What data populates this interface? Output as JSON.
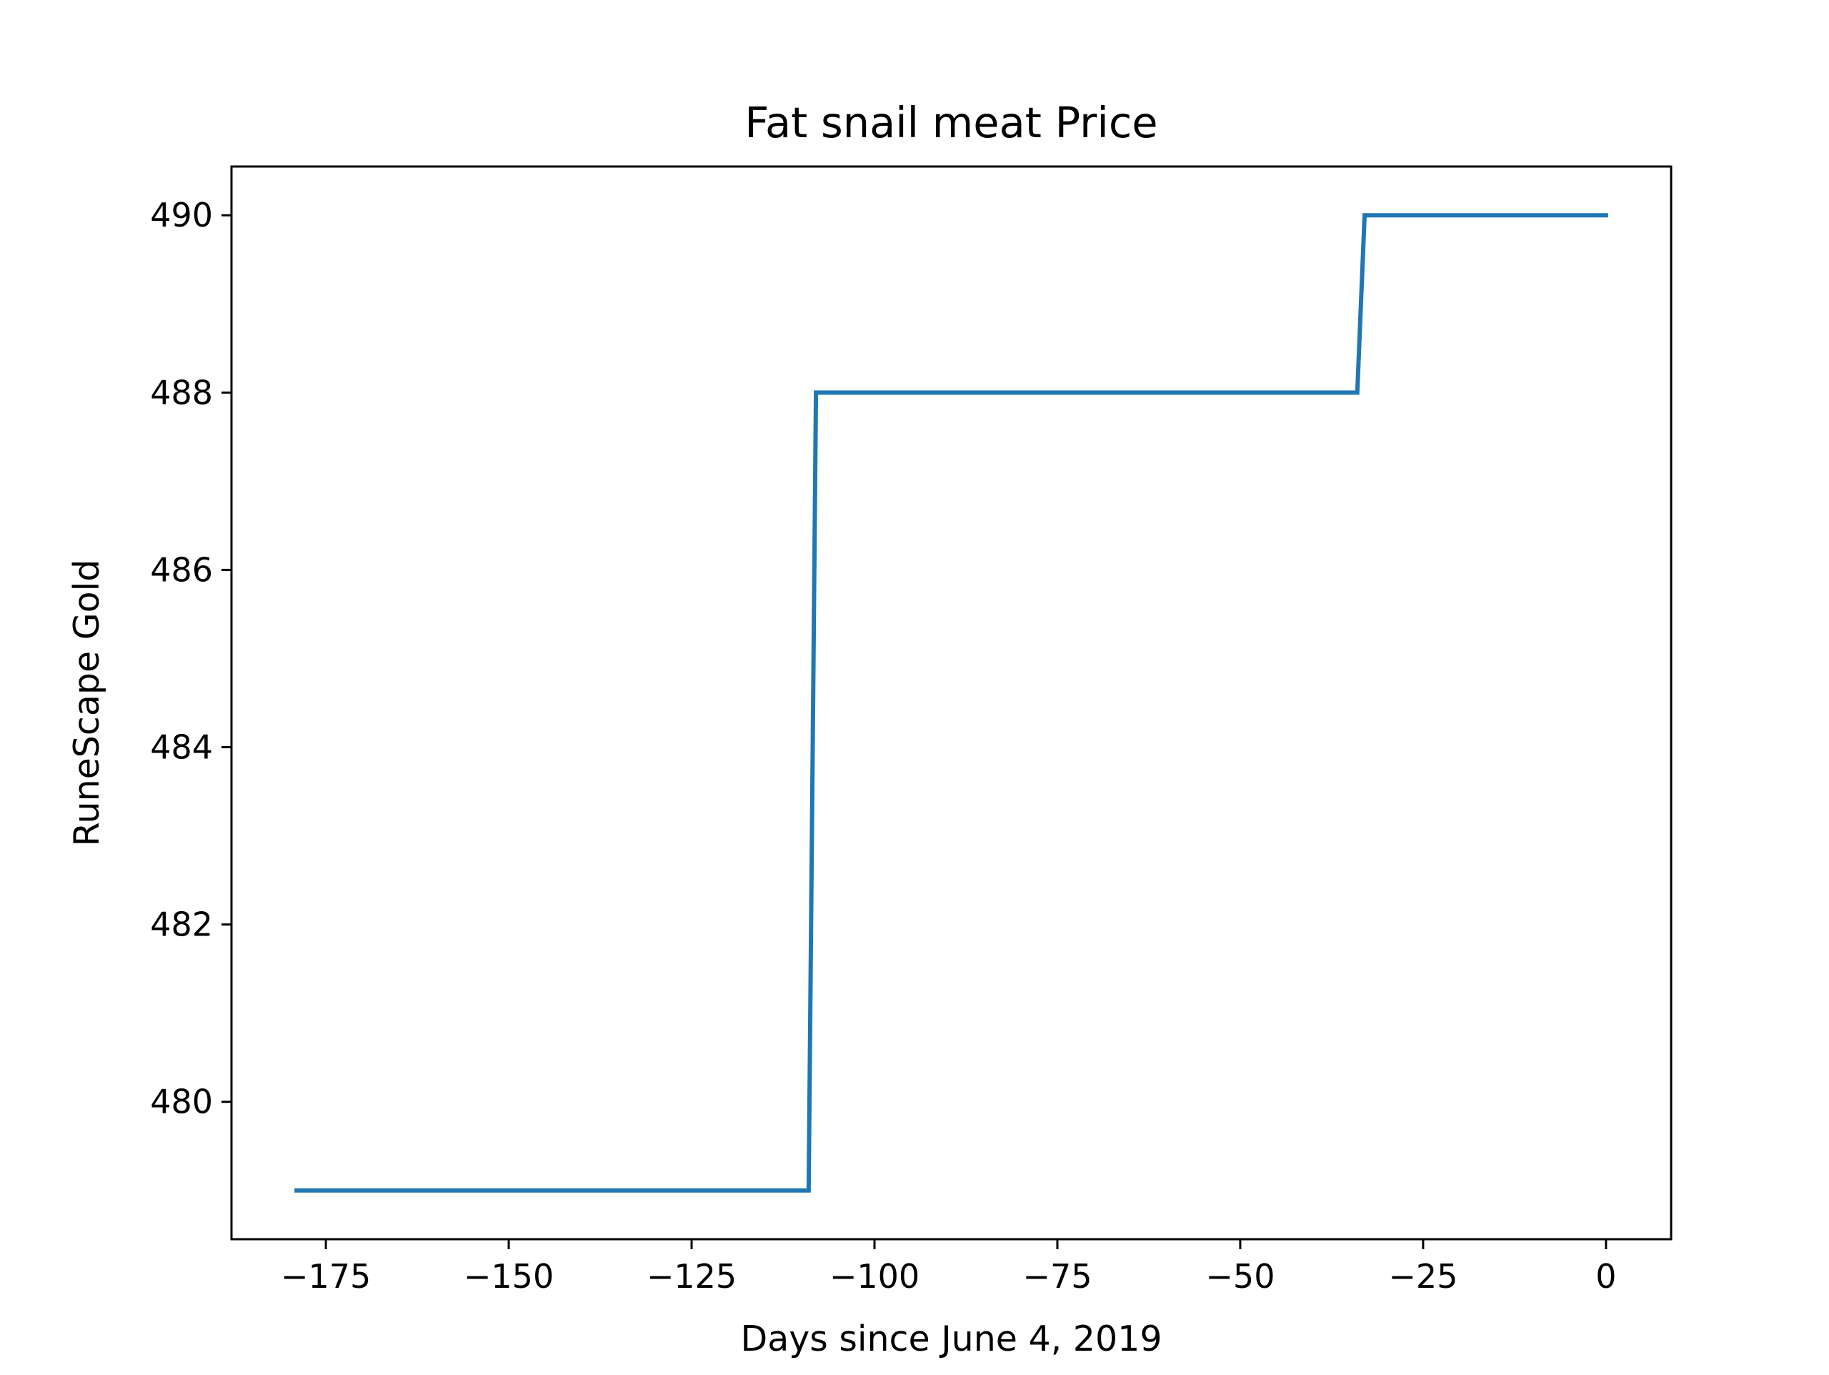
{
  "chart_data": {
    "type": "line",
    "title": "Fat snail meat Price",
    "xlabel": "Days since June 4, 2019",
    "ylabel": "RuneScape Gold",
    "xlim": [
      -187.9,
      8.9
    ],
    "ylim": [
      478.45,
      490.55
    ],
    "xticks": [
      -175,
      -150,
      -125,
      -100,
      -75,
      -50,
      -25,
      0
    ],
    "xtick_labels": [
      "−175",
      "−150",
      "−125",
      "−100",
      "−75",
      "−50",
      "−25",
      "0"
    ],
    "yticks": [
      480,
      482,
      484,
      486,
      488,
      490
    ],
    "ytick_labels": [
      "480",
      "482",
      "484",
      "486",
      "488",
      "490"
    ],
    "grid": false,
    "series": [
      {
        "color": "#1f77b4",
        "points": [
          {
            "x": -179,
            "y": 479
          },
          {
            "x": -109,
            "y": 479
          },
          {
            "x": -108,
            "y": 488
          },
          {
            "x": -34,
            "y": 488
          },
          {
            "x": -33,
            "y": 490
          },
          {
            "x": 0,
            "y": 490
          }
        ]
      }
    ]
  }
}
